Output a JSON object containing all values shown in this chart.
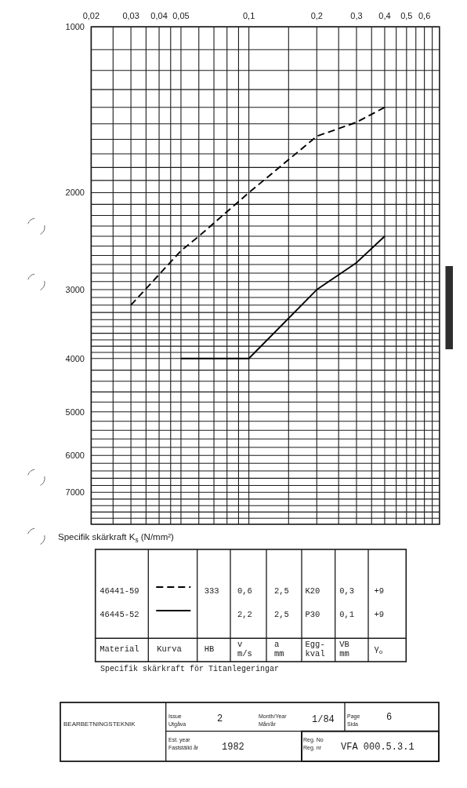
{
  "chart_data": [
    {
      "type": "line",
      "ylabel": "Specifik skärkraft K$_{s}$ (N/mm²)",
      "log": "xy",
      "grid": true,
      "legend": "bottom",
      "xlim": [
        0.02,
        0.7
      ],
      "xticks": [
        {
          "value": 0.02,
          "label": "0,02"
        },
        {
          "value": 0.025,
          "label": null
        },
        {
          "value": 0.03,
          "label": "0,03"
        },
        {
          "value": 0.035,
          "label": null
        },
        {
          "value": 0.04,
          "label": "0,04"
        },
        {
          "value": 0.045,
          "label": null
        },
        {
          "value": 0.05,
          "label": "0,05"
        },
        {
          "value": 0.06,
          "label": null
        },
        {
          "value": 0.07,
          "label": null
        },
        {
          "value": 0.08,
          "label": null
        },
        {
          "value": 0.09,
          "label": null
        },
        {
          "value": 0.1,
          "label": "0,1"
        },
        {
          "value": 0.15,
          "label": null
        },
        {
          "value": 0.2,
          "label": "0,2"
        },
        {
          "value": 0.25,
          "label": null
        },
        {
          "value": 0.3,
          "label": "0,3"
        },
        {
          "value": 0.35,
          "label": null
        },
        {
          "value": 0.4,
          "label": "0,4"
        },
        {
          "value": 0.45,
          "label": null
        },
        {
          "value": 0.5,
          "label": "0,5"
        },
        {
          "value": 0.55,
          "label": null
        },
        {
          "value": 0.6,
          "label": "0,6"
        },
        {
          "value": 0.65,
          "label": null
        }
      ],
      "ylim": [
        8000,
        1000
      ],
      "yticks": [
        1000,
        {
          "value": 1100,
          "label": null
        },
        {
          "value": 1200,
          "label": null
        },
        {
          "value": 1300,
          "label": null
        },
        {
          "value": 1400,
          "label": null
        },
        {
          "value": 1500,
          "label": null
        },
        {
          "value": 1600,
          "label": null
        },
        {
          "value": 1700,
          "label": null
        },
        {
          "value": 1800,
          "label": null
        },
        {
          "value": 1900,
          "label": null
        },
        2000,
        {
          "value": 2100,
          "label": null
        },
        {
          "value": 2200,
          "label": null
        },
        {
          "value": 2300,
          "label": null
        },
        {
          "value": 2400,
          "label": null
        },
        {
          "value": 2500,
          "label": null
        },
        {
          "value": 2600,
          "label": null
        },
        {
          "value": 2700,
          "label": null
        },
        {
          "value": 2800,
          "label": null
        },
        {
          "value": 2900,
          "label": null
        },
        3000,
        {
          "value": 3100,
          "label": null
        },
        {
          "value": 3200,
          "label": null
        },
        {
          "value": 3300,
          "label": null
        },
        {
          "value": 3400,
          "label": null
        },
        {
          "value": 3500,
          "label": null
        },
        {
          "value": 3600,
          "label": null
        },
        {
          "value": 3700,
          "label": null
        },
        {
          "value": 3800,
          "label": null
        },
        {
          "value": 3900,
          "label": null
        },
        4000,
        {
          "value": 4200,
          "label": null
        },
        {
          "value": 4400,
          "label": null
        },
        {
          "value": 4600,
          "label": null
        },
        {
          "value": 4800,
          "label": null
        },
        5000,
        {
          "value": 5200,
          "label": null
        },
        {
          "value": 5400,
          "label": null
        },
        {
          "value": 5600,
          "label": null
        },
        {
          "value": 5800,
          "label": null
        },
        6000,
        {
          "value": 6200,
          "label": null
        },
        {
          "value": 6400,
          "label": null
        },
        {
          "value": 6600,
          "label": null
        },
        {
          "value": 6800,
          "label": null
        },
        7000,
        {
          "value": 7200,
          "label": null
        },
        {
          "value": 7400,
          "label": null
        },
        {
          "value": 7600,
          "label": null
        },
        {
          "value": 7800,
          "label": null
        }
      ],
      "series": [
        {
          "name": "46445-52",
          "color": "#000000",
          "line_style": "solid",
          "x": [
            0.05,
            0.1,
            0.2,
            0.3,
            0.4
          ],
          "values": [
            4000,
            4000,
            3000,
            2680,
            2400
          ]
        },
        {
          "name": "46441-59",
          "color": "#000000",
          "line_style": "dashed",
          "x": [
            0.03,
            0.05,
            0.06,
            0.1,
            0.2,
            0.3,
            0.4
          ],
          "values": [
            3200,
            2550,
            2400,
            2000,
            1580,
            1490,
            1400
          ]
        }
      ]
    },
    {
      "type": "other",
      "title": "Specifik skärkraft för Titanlegeringar",
      "categories": [
        "Material",
        "Kurva",
        "HB",
        "v m/s",
        "a mm",
        "Egg-kval",
        "VB mm",
        "γ$_{o}$"
      ],
      "cell_labels": [
        [
          null,
          "2,2",
          "2,5",
          "P30",
          "0,1",
          "+9"
        ],
        [
          "333",
          "0,6",
          "2,5",
          "K20",
          "0,3",
          "+9"
        ]
      ]
    },
    {
      "type": "other",
      "annotations": [
        "BEARBETNINGSTEKNIK",
        "Issue",
        "Utgåva",
        "2",
        "Month/Year",
        "Mån/år",
        "1/84",
        "Page",
        "Sida",
        "6",
        "Est. year",
        "Fastställd år",
        "1982",
        "Reg. No",
        "Reg. nr",
        "VFA 000.5.3.1"
      ]
    }
  ]
}
